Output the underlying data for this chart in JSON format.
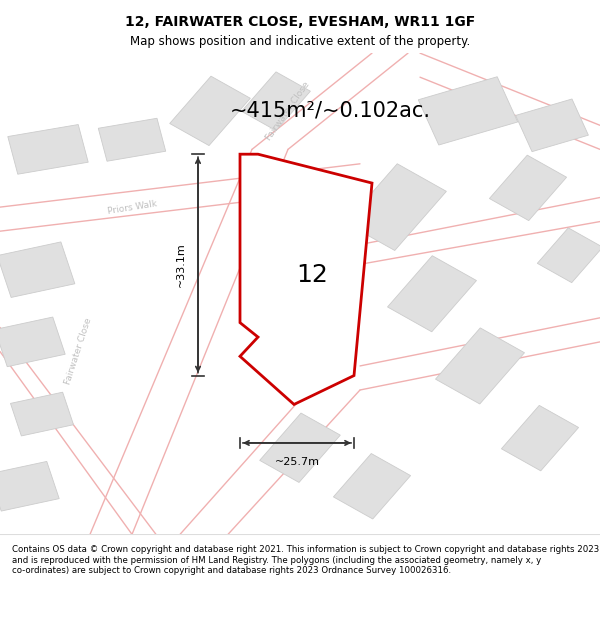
{
  "title": "12, FAIRWATER CLOSE, EVESHAM, WR11 1GF",
  "subtitle": "Map shows position and indicative extent of the property.",
  "area_text": "~415m²/~0.102ac.",
  "dim_h": "~33.1m",
  "dim_w": "~25.7m",
  "number_label": "12",
  "footer": "Contains OS data © Crown copyright and database right 2021. This information is subject to Crown copyright and database rights 2023 and is reproduced with the permission of HM Land Registry. The polygons (including the associated geometry, namely x, y co-ordinates) are subject to Crown copyright and database rights 2023 Ordnance Survey 100026316.",
  "bg_color": "#ffffff",
  "map_bg": "#ffffff",
  "road_color": "#f0b0b0",
  "building_fill": "#e0e0e0",
  "building_edge": "#cccccc",
  "plot_fill": "#ffffff",
  "plot_edge": "#cc0000",
  "street_label_color": "#c0c0c0",
  "arrow_color": "#333333",
  "title_fontsize": 10,
  "subtitle_fontsize": 8.5,
  "area_fontsize": 15,
  "number_fontsize": 18,
  "footer_fontsize": 6.2,
  "dim_fontsize": 8
}
